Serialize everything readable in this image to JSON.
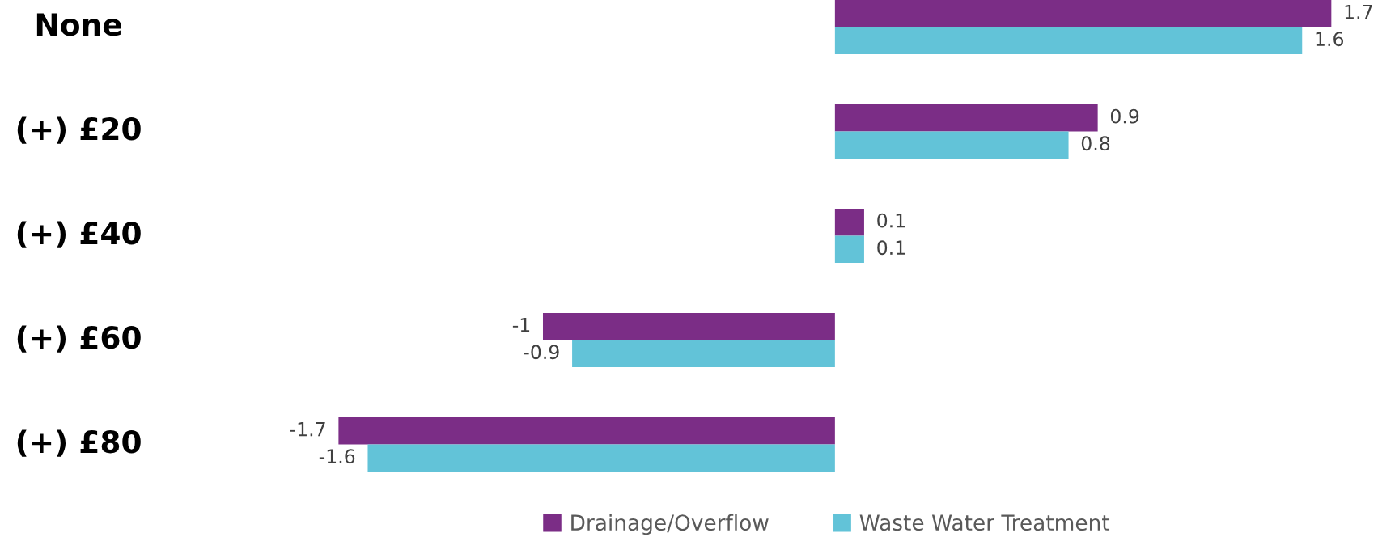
{
  "chart_data": {
    "type": "bar",
    "orientation": "horizontal",
    "categories": [
      "None",
      "(+) £20",
      "(+) £40",
      "(+) £60",
      "(+) £80"
    ],
    "series": [
      {
        "name": "Drainage/Overflow",
        "color": "#7b2d86",
        "values": [
          1.7,
          0.9,
          0.1,
          -1,
          -1.7
        ]
      },
      {
        "name": "Waste Water Treatment",
        "color": "#62c3d8",
        "values": [
          1.6,
          0.8,
          0.1,
          -0.9,
          -1.6
        ]
      }
    ],
    "data_labels": true,
    "legend": "bottom"
  }
}
